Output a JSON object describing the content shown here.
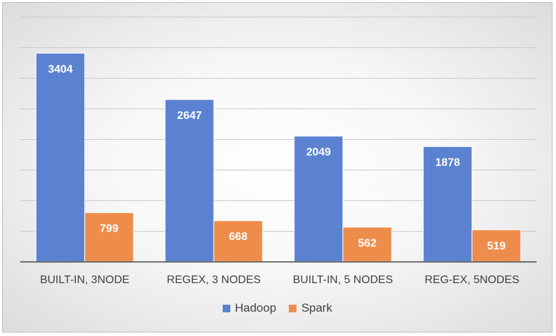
{
  "chart_data": {
    "type": "bar",
    "title": "",
    "xlabel": "",
    "ylabel": "",
    "ylim": [
      0,
      4000
    ],
    "grid": true,
    "legend_position": "bottom",
    "categories": [
      "BUILT-IN, 3NODE",
      "REGEX, 3 NODES",
      "BUILT-IN, 5 NODES",
      "REG-EX, 5NODES"
    ],
    "series": [
      {
        "name": "Hadoop",
        "color": "#5b82d0",
        "values": [
          3404,
          2647,
          2049,
          1878
        ]
      },
      {
        "name": "Spark",
        "color": "#ee8c4b",
        "values": [
          799,
          668,
          562,
          519
        ]
      }
    ]
  }
}
